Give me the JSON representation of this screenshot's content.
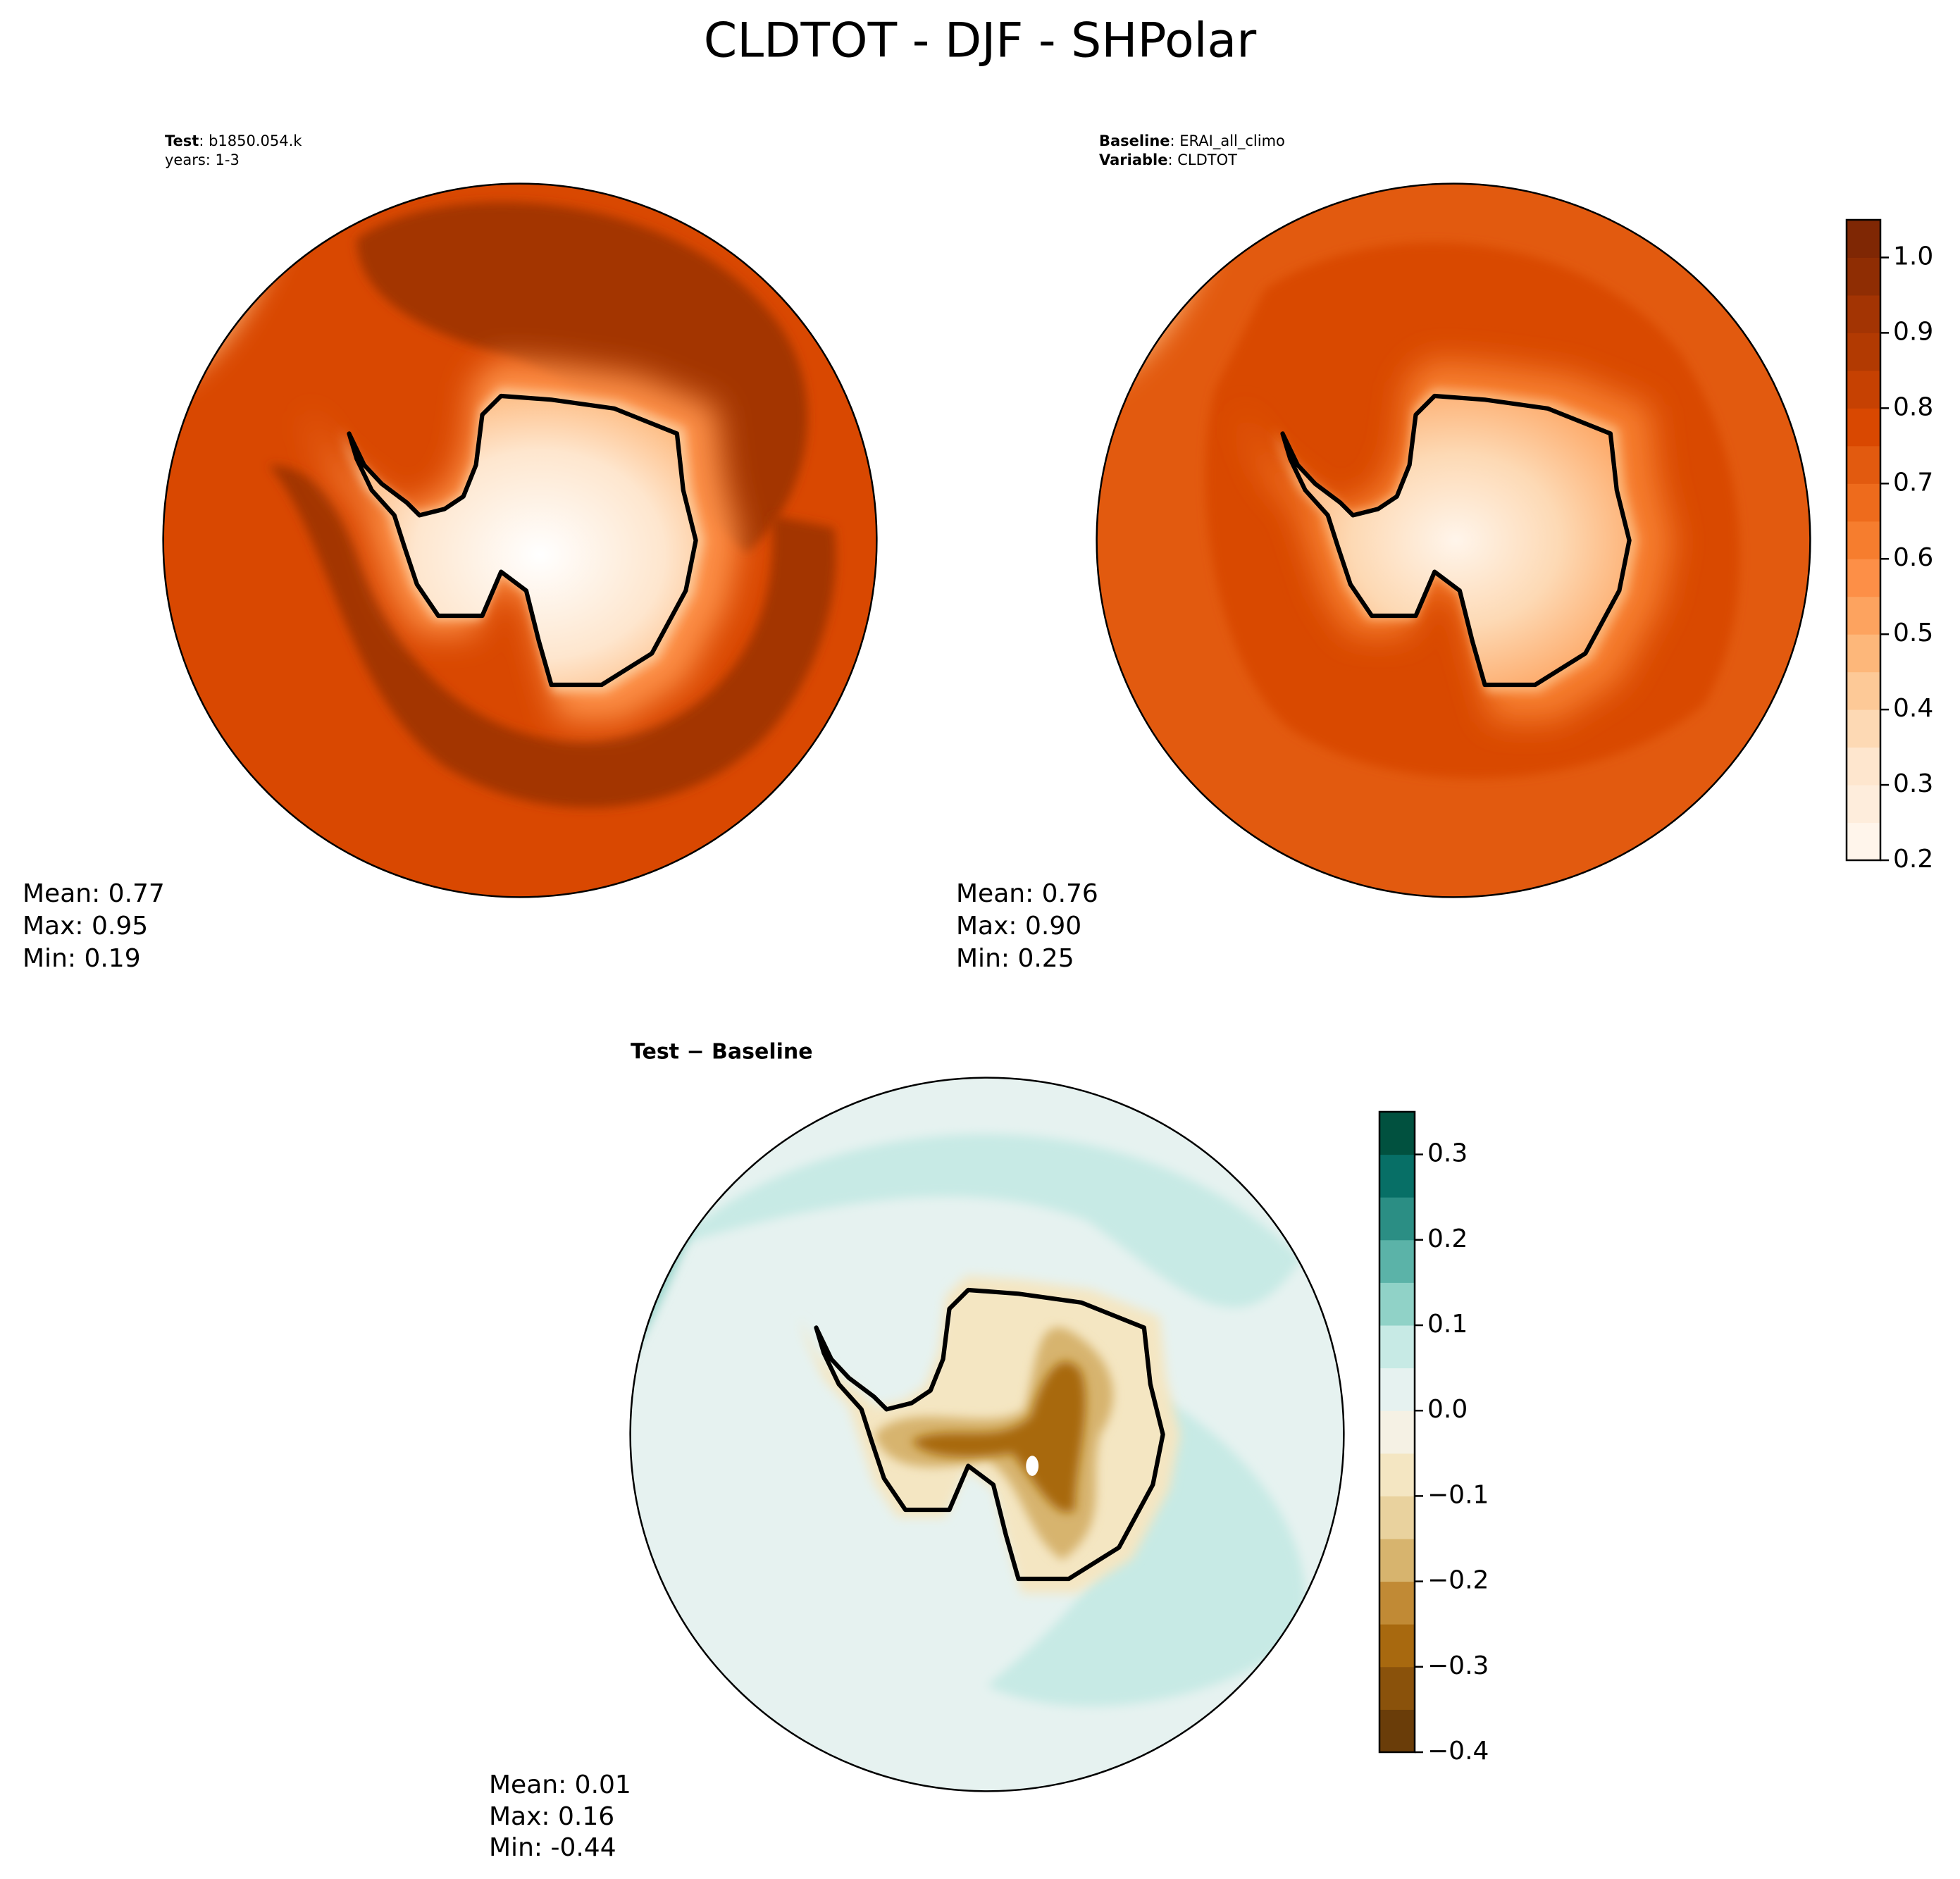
{
  "title": "CLDTOT - DJF - SHPolar",
  "panels": [
    {
      "tag": "Test",
      "info": ": b1850.054.k",
      "line2": "years: 1-3",
      "stats": [
        "Mean:  0.77",
        "Max:  0.95",
        "Min:  0.19"
      ]
    },
    {
      "tag": "Baseline",
      "info": ": ERAI_all_climo",
      "tag2": "Variable",
      "info2": ": CLDTOT",
      "stats": [
        "Mean:  0.76",
        "Max:  0.90",
        "Min:  0.25"
      ]
    },
    {
      "heading": "Test − Baseline",
      "stats": [
        "Mean:  0.01",
        "Max:  0.16",
        "Min: -0.44"
      ]
    }
  ],
  "colorbars": [
    {
      "lim": [
        0.2,
        1.05
      ],
      "ticks": [
        0.2,
        0.3,
        0.4,
        0.5,
        0.6,
        0.7,
        0.8,
        0.9,
        {
          "value": 1.0,
          "label": "1.0"
        }
      ],
      "colors": [
        "#fff5eb",
        "#feeddc",
        "#fee6ce",
        "#fdd9b4",
        "#fdc997",
        "#fdb77a",
        "#fda35f",
        "#fd8f47",
        "#f67d2e",
        "#ee6b1c",
        "#e25a0f",
        "#d94801",
        "#c64102",
        "#b23a02",
        "#a33403",
        "#8f2d03",
        "#7f2704"
      ]
    },
    {
      "lim": [
        -0.4,
        0.35
      ],
      "ticks": [
        {
          "value": -0.4,
          "label": "−0.4"
        },
        {
          "value": -0.3,
          "label": "−0.3"
        },
        {
          "value": -0.2,
          "label": "−0.2"
        },
        {
          "value": -0.1,
          "label": "−0.1"
        },
        {
          "value": 0,
          "label": "0.0"
        },
        0.1,
        0.2,
        0.3
      ],
      "colors": [
        "#6a3d09",
        "#8a520b",
        "#a8690f",
        "#c18a35",
        "#d7b46e",
        "#e9d29e",
        "#f4e6c2",
        "#f5f1e4",
        "#e6f2f0",
        "#c7eae5",
        "#90d2c7",
        "#5bb3a8",
        "#2b8e84",
        "#076f66",
        "#01513f"
      ]
    }
  ]
}
